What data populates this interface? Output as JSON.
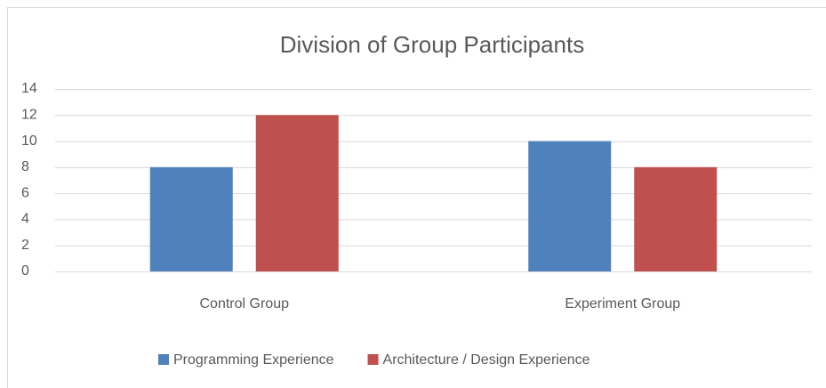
{
  "chart_data": {
    "type": "bar",
    "title": "Division of Group Participants",
    "categories": [
      "Control Group",
      "Experiment Group"
    ],
    "series": [
      {
        "name": "Programming Experience",
        "color": "#4f81bd",
        "values": [
          8,
          10
        ]
      },
      {
        "name": "Architecture / Design Experience",
        "color": "#c0504d",
        "values": [
          12,
          8
        ]
      }
    ],
    "ylim": [
      0,
      14
    ],
    "yticks": [
      0,
      2,
      4,
      6,
      8,
      10,
      12,
      14
    ],
    "grid": true,
    "legend": "bottom"
  }
}
